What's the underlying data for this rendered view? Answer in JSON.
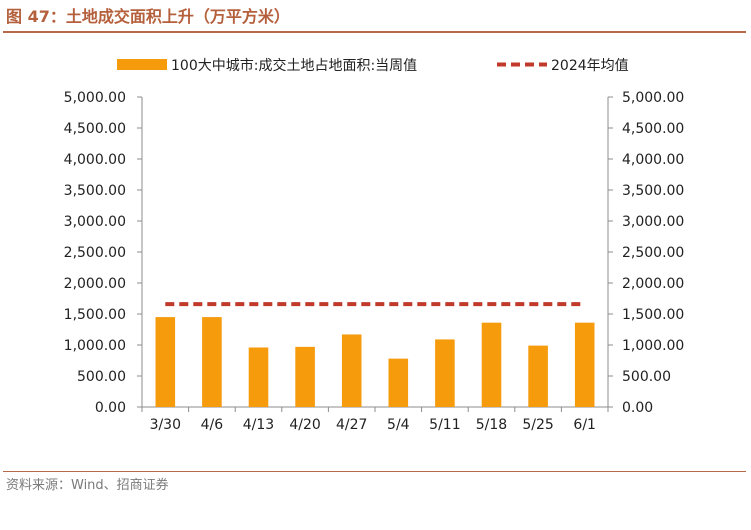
{
  "figure": {
    "title": "图 47：土地成交面积上升（万平方米）",
    "source": "资料来源：Wind、招商证券"
  },
  "colors": {
    "bar": "#f59b0c",
    "avg_line": "#c0392b",
    "title": "#b5603c",
    "rule": "#b8694a",
    "axis": "#8c8c8c"
  },
  "chart_data": {
    "type": "bar",
    "title": "土地成交面积上升（万平方米）",
    "categories": [
      "3/30",
      "4/6",
      "4/13",
      "4/20",
      "4/27",
      "5/4",
      "5/11",
      "5/18",
      "5/25",
      "6/1"
    ],
    "series": [
      {
        "name": "100大中城市:成交土地占地面积:当周值",
        "kind": "bar",
        "values": [
          1450,
          1450,
          960,
          970,
          1170,
          780,
          1090,
          1360,
          990,
          1360
        ]
      },
      {
        "name": "2024年均值",
        "kind": "dashed-line",
        "values": [
          1660,
          1660,
          1660,
          1660,
          1660,
          1660,
          1660,
          1660,
          1660,
          1660
        ]
      }
    ],
    "ylim": [
      0,
      5000
    ],
    "y_ticks": [
      "0.00",
      "500.00",
      "1,000.00",
      "1,500.00",
      "2,000.00",
      "2,500.00",
      "3,000.00",
      "3,500.00",
      "4,000.00",
      "4,500.00",
      "5,000.00"
    ],
    "y_tick_values": [
      0,
      500,
      1000,
      1500,
      2000,
      2500,
      3000,
      3500,
      4000,
      4500,
      5000
    ],
    "y2_ticks": [
      "0.00",
      "500.00",
      "1,000.00",
      "1,500.00",
      "2,000.00",
      "2,500.00",
      "3,000.00",
      "3,500.00",
      "4,000.00",
      "4,500.00",
      "5,000.00"
    ],
    "xlabel": "",
    "ylabel": "",
    "grid": false,
    "legend": "top"
  }
}
